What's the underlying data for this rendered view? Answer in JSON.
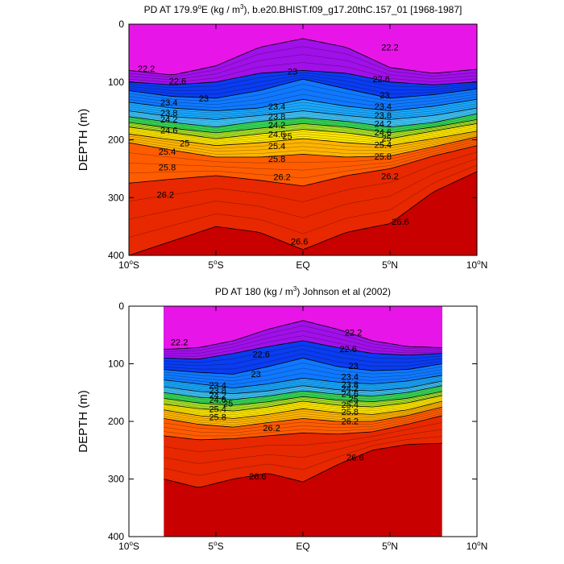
{
  "chart_data": [
    {
      "type": "contour",
      "title_prefix": "PD AT 179.9",
      "title_sup": "o",
      "title_mid": "E (kg / m",
      "title_unit_sup": "3",
      "title_suffix": "), b.e20.BHIST.f09_g17.20thC.157_01 [1968-1987]",
      "ylabel": "DEPTH (m)",
      "xlim": [
        -10,
        10
      ],
      "ylim": [
        0,
        400
      ],
      "y_reversed": true,
      "x_ticks": [
        {
          "num": "10",
          "sup": "o",
          "hem": "S"
        },
        {
          "num": "5",
          "sup": "o",
          "hem": "S"
        },
        {
          "num": "EQ",
          "sup": "",
          "hem": ""
        },
        {
          "num": "5",
          "sup": "o",
          "hem": "N"
        },
        {
          "num": "10",
          "sup": "o",
          "hem": "N"
        }
      ],
      "x_tick_values": [
        -10,
        -5,
        0,
        5,
        10
      ],
      "y_ticks": [
        "0",
        "100",
        "200",
        "300",
        "400"
      ],
      "y_tick_values": [
        0,
        100,
        200,
        300,
        400
      ],
      "data_extent": [
        -10,
        10
      ],
      "contour_levels": [
        22.2,
        22.6,
        23.0,
        23.4,
        23.8,
        24.2,
        24.6,
        25.0,
        25.4,
        25.8,
        26.2,
        26.6
      ],
      "isopycnal_depths": {
        "x": [
          -10,
          -7.5,
          -5,
          -2.5,
          0,
          2.5,
          5,
          7.5,
          10
        ],
        "series": [
          {
            "sigma": 22.2,
            "depth_m": [
              80,
              88,
              72,
              40,
              25,
              40,
              75,
              85,
              78
            ]
          },
          {
            "sigma": 22.6,
            "depth_m": [
              100,
              105,
              100,
              85,
              80,
              85,
              100,
              105,
              100
            ]
          },
          {
            "sigma": 23.0,
            "depth_m": [
              115,
              125,
              128,
              115,
              95,
              112,
              128,
              122,
              112
            ]
          },
          {
            "sigma": 23.4,
            "depth_m": [
              135,
              145,
              150,
              145,
              130,
              142,
              150,
              142,
              130
            ]
          },
          {
            "sigma": 23.8,
            "depth_m": [
              150,
              160,
              165,
              158,
              150,
              158,
              165,
              158,
              145
            ]
          },
          {
            "sigma": 24.2,
            "depth_m": [
              160,
              170,
              178,
              168,
              162,
              168,
              178,
              170,
              155
            ]
          },
          {
            "sigma": 24.6,
            "depth_m": [
              170,
              180,
              188,
              180,
              172,
              178,
              188,
              178,
              165
            ]
          },
          {
            "sigma": 25.0,
            "depth_m": [
              178,
              188,
              198,
              190,
              182,
              188,
              198,
              185,
              172
            ]
          },
          {
            "sigma": 25.4,
            "depth_m": [
              190,
              200,
              210,
              205,
              198,
              205,
              210,
              198,
              185
            ]
          },
          {
            "sigma": 25.8,
            "depth_m": [
              205,
              218,
              230,
              230,
              225,
              230,
              228,
              212,
              195
            ]
          },
          {
            "sigma": 26.2,
            "depth_m": [
              275,
              268,
              262,
              270,
              280,
              262,
              250,
              228,
              210
            ]
          },
          {
            "sigma": 26.6,
            "depth_m": [
              400,
              375,
              350,
              360,
              390,
              360,
              345,
              290,
              255
            ]
          }
        ]
      },
      "contour_labels": [
        {
          "text": "22.2",
          "x": -9.0,
          "y": 82
        },
        {
          "text": "22.6",
          "x": -7.2,
          "y": 104
        },
        {
          "text": "23",
          "x": -5.7,
          "y": 134
        },
        {
          "text": "23.4",
          "x": -7.7,
          "y": 141
        },
        {
          "text": "23.8",
          "x": -7.7,
          "y": 159
        },
        {
          "text": "24.2",
          "x": -7.7,
          "y": 170
        },
        {
          "text": "24.6",
          "x": -7.7,
          "y": 189
        },
        {
          "text": "25",
          "x": -6.8,
          "y": 211
        },
        {
          "text": "25.4",
          "x": -7.8,
          "y": 226
        },
        {
          "text": "25.8",
          "x": -7.8,
          "y": 253
        },
        {
          "text": "26.2",
          "x": -7.9,
          "y": 300
        },
        {
          "text": "23",
          "x": -0.6,
          "y": 87
        },
        {
          "text": "23.4",
          "x": -1.5,
          "y": 148
        },
        {
          "text": "23.8",
          "x": -1.5,
          "y": 165
        },
        {
          "text": "24.2",
          "x": -1.5,
          "y": 180
        },
        {
          "text": "24.6",
          "x": -1.5,
          "y": 196
        },
        {
          "text": "25",
          "x": -0.9,
          "y": 199
        },
        {
          "text": "25.4",
          "x": -1.5,
          "y": 216
        },
        {
          "text": "25.8",
          "x": -1.5,
          "y": 238
        },
        {
          "text": "26.2",
          "x": -1.2,
          "y": 270
        },
        {
          "text": "26.6",
          "x": -0.2,
          "y": 381
        },
        {
          "text": "22.2",
          "x": 5.0,
          "y": 45
        },
        {
          "text": "22.6",
          "x": 4.5,
          "y": 100
        },
        {
          "text": "23",
          "x": 4.7,
          "y": 128
        },
        {
          "text": "23.4",
          "x": 4.6,
          "y": 148
        },
        {
          "text": "23.8",
          "x": 4.6,
          "y": 163
        },
        {
          "text": "24.2",
          "x": 4.6,
          "y": 178
        },
        {
          "text": "24.6",
          "x": 4.6,
          "y": 192
        },
        {
          "text": "25",
          "x": 4.8,
          "y": 203
        },
        {
          "text": "25.4",
          "x": 4.6,
          "y": 214
        },
        {
          "text": "25.8",
          "x": 4.6,
          "y": 234
        },
        {
          "text": "26.2",
          "x": 5.0,
          "y": 268
        },
        {
          "text": "26.6",
          "x": 5.6,
          "y": 347
        }
      ]
    },
    {
      "type": "contour",
      "title_prefix": "PD AT 180 (kg / m",
      "title_unit_sup": "3",
      "title_suffix": ") Johnson et al (2002)",
      "ylabel": "DEPTH (m)",
      "xlim": [
        -10,
        10
      ],
      "ylim": [
        0,
        400
      ],
      "y_reversed": true,
      "x_ticks": [
        {
          "num": "10",
          "sup": "o",
          "hem": "S"
        },
        {
          "num": "5",
          "sup": "o",
          "hem": "S"
        },
        {
          "num": "EQ",
          "sup": "",
          "hem": ""
        },
        {
          "num": "5",
          "sup": "o",
          "hem": "N"
        },
        {
          "num": "10",
          "sup": "o",
          "hem": "N"
        }
      ],
      "x_tick_values": [
        -10,
        -5,
        0,
        5,
        10
      ],
      "y_ticks": [
        "0",
        "100",
        "200",
        "300",
        "400"
      ],
      "y_tick_values": [
        0,
        100,
        200,
        300,
        400
      ],
      "data_extent": [
        -8,
        8
      ],
      "contour_levels": [
        22.2,
        22.6,
        23.0,
        23.4,
        23.8,
        24.2,
        24.6,
        25.0,
        25.4,
        25.8,
        26.2,
        26.6
      ],
      "isopycnal_depths": {
        "x": [
          -8,
          -6,
          -4,
          -2,
          0,
          2,
          4,
          6,
          8
        ],
        "series": [
          {
            "sigma": 22.2,
            "depth_m": [
              75,
              72,
              60,
              40,
              25,
              40,
              60,
              70,
              72
            ]
          },
          {
            "sigma": 22.6,
            "depth_m": [
              90,
              92,
              82,
              70,
              60,
              72,
              82,
              85,
              82
            ]
          },
          {
            "sigma": 23.0,
            "depth_m": [
              110,
              115,
              118,
              105,
              90,
              105,
              112,
              110,
              100
            ]
          },
          {
            "sigma": 23.4,
            "depth_m": [
              128,
              135,
              142,
              135,
              125,
              132,
              135,
              130,
              120
            ]
          },
          {
            "sigma": 23.8,
            "depth_m": [
              140,
              148,
              152,
              147,
              138,
              145,
              147,
              142,
              130
            ]
          },
          {
            "sigma": 24.2,
            "depth_m": [
              150,
              158,
              162,
              156,
              147,
              153,
              156,
              150,
              138
            ]
          },
          {
            "sigma": 24.6,
            "depth_m": [
              160,
              168,
              172,
              166,
              157,
              163,
              166,
              160,
              148
            ]
          },
          {
            "sigma": 25.0,
            "depth_m": [
              170,
              178,
              182,
              175,
              165,
              172,
              175,
              168,
              155
            ]
          },
          {
            "sigma": 25.4,
            "depth_m": [
              180,
              190,
              195,
              188,
              178,
              185,
              188,
              180,
              165
            ]
          },
          {
            "sigma": 25.8,
            "depth_m": [
              195,
              205,
              210,
              202,
              195,
              200,
              200,
              190,
              175
            ]
          },
          {
            "sigma": 26.2,
            "depth_m": [
              225,
              232,
              230,
              225,
              220,
              222,
              218,
              205,
              190
            ]
          },
          {
            "sigma": 26.6,
            "depth_m": [
              300,
              315,
              300,
              290,
              305,
              275,
              250,
              240,
              238
            ]
          }
        ]
      },
      "contour_labels": [
        {
          "text": "22.2",
          "x": -7.1,
          "y": 68
        },
        {
          "text": "22.6",
          "x": -2.4,
          "y": 89
        },
        {
          "text": "23",
          "x": -2.7,
          "y": 123
        },
        {
          "text": "23.4",
          "x": -4.9,
          "y": 143
        },
        {
          "text": "23.8",
          "x": -4.9,
          "y": 152
        },
        {
          "text": "24.2",
          "x": -4.9,
          "y": 160
        },
        {
          "text": "24.6",
          "x": -4.9,
          "y": 168
        },
        {
          "text": "25",
          "x": -4.3,
          "y": 174
        },
        {
          "text": "25.4",
          "x": -4.9,
          "y": 184
        },
        {
          "text": "25.8",
          "x": -4.9,
          "y": 198
        },
        {
          "text": "26.2",
          "x": -1.8,
          "y": 217
        },
        {
          "text": "26.6",
          "x": -2.6,
          "y": 301
        },
        {
          "text": "22.2",
          "x": 2.9,
          "y": 51
        },
        {
          "text": "22.6",
          "x": 2.6,
          "y": 80
        },
        {
          "text": "23",
          "x": 2.9,
          "y": 109
        },
        {
          "text": "23.4",
          "x": 2.7,
          "y": 128
        },
        {
          "text": "23.8",
          "x": 2.7,
          "y": 141
        },
        {
          "text": "24.2",
          "x": 2.7,
          "y": 148
        },
        {
          "text": "24.6",
          "x": 2.7,
          "y": 157
        },
        {
          "text": "25",
          "x": 2.9,
          "y": 167
        },
        {
          "text": "25.4",
          "x": 2.7,
          "y": 176
        },
        {
          "text": "25.8",
          "x": 2.7,
          "y": 189
        },
        {
          "text": "26.2",
          "x": 2.7,
          "y": 205
        },
        {
          "text": "26.6",
          "x": 3.0,
          "y": 268
        }
      ]
    }
  ]
}
